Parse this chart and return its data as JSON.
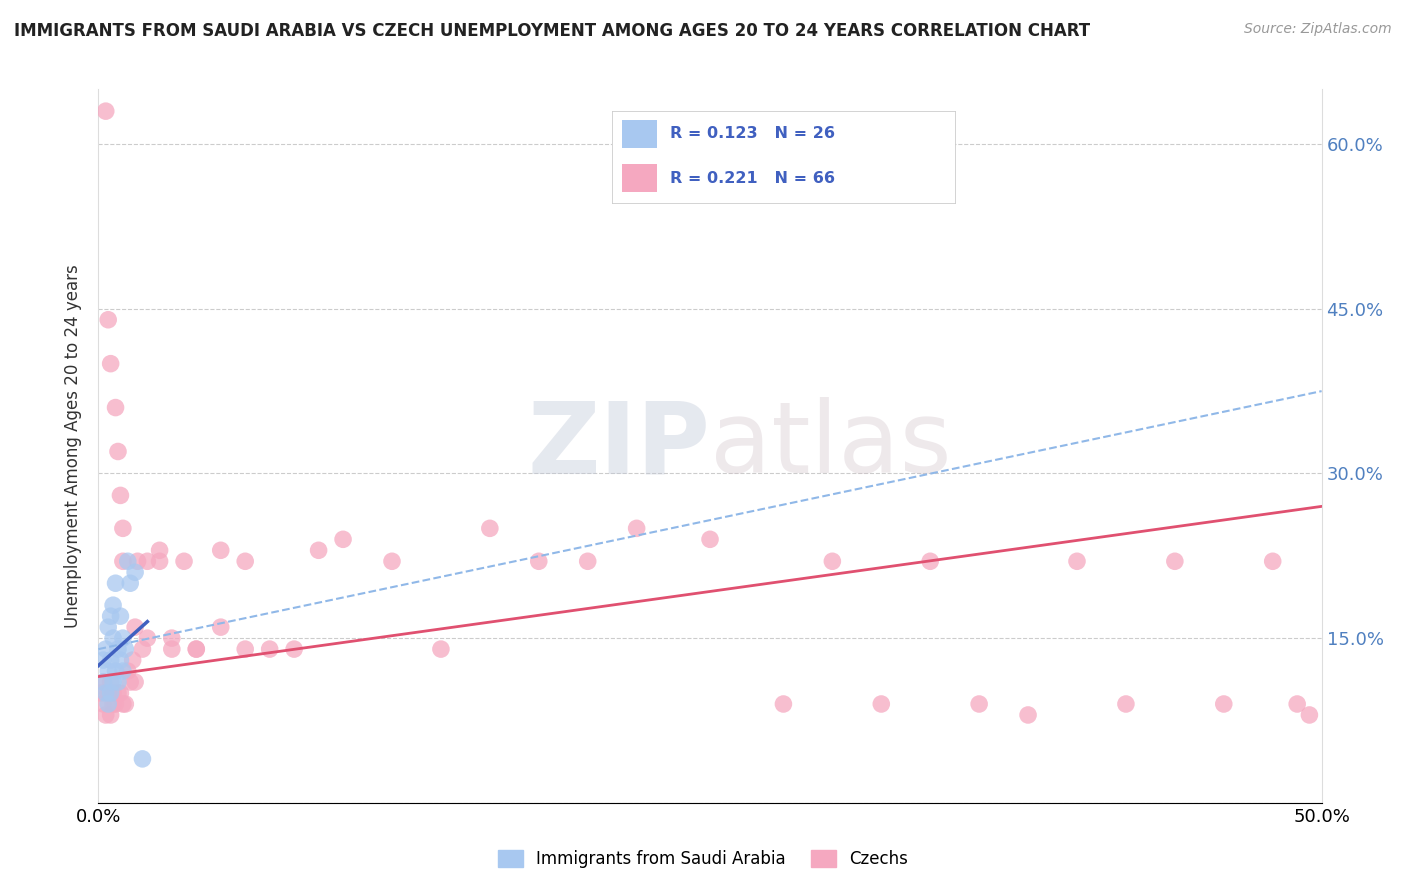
{
  "title": "IMMIGRANTS FROM SAUDI ARABIA VS CZECH UNEMPLOYMENT AMONG AGES 20 TO 24 YEARS CORRELATION CHART",
  "source": "Source: ZipAtlas.com",
  "ylabel": "Unemployment Among Ages 20 to 24 years",
  "x_min": 0.0,
  "x_max": 0.5,
  "y_min": 0.0,
  "y_max": 0.65,
  "yticks": [
    0.0,
    0.15,
    0.3,
    0.45,
    0.6
  ],
  "right_ytick_labels": [
    "",
    "15.0%",
    "30.0%",
    "45.0%",
    "60.0%"
  ],
  "xticks": [
    0.0,
    0.1,
    0.2,
    0.3,
    0.4,
    0.5
  ],
  "color_blue": "#A8C8F0",
  "color_pink": "#F5A8C0",
  "color_blue_line": "#4060C0",
  "color_pink_line": "#E05070",
  "color_dashed_line": "#90B8E8",
  "watermark": "ZIPatlas",
  "blue_dots_x": [
    0.002,
    0.002,
    0.003,
    0.003,
    0.004,
    0.004,
    0.004,
    0.005,
    0.005,
    0.005,
    0.006,
    0.006,
    0.006,
    0.007,
    0.007,
    0.008,
    0.008,
    0.009,
    0.009,
    0.01,
    0.01,
    0.011,
    0.012,
    0.013,
    0.015,
    0.018
  ],
  "blue_dots_y": [
    0.11,
    0.13,
    0.1,
    0.14,
    0.09,
    0.12,
    0.16,
    0.1,
    0.13,
    0.17,
    0.11,
    0.15,
    0.18,
    0.12,
    0.2,
    0.11,
    0.14,
    0.13,
    0.17,
    0.12,
    0.15,
    0.14,
    0.22,
    0.2,
    0.21,
    0.04
  ],
  "pink_dots_x": [
    0.001,
    0.002,
    0.002,
    0.003,
    0.003,
    0.004,
    0.004,
    0.005,
    0.005,
    0.005,
    0.006,
    0.006,
    0.007,
    0.007,
    0.008,
    0.008,
    0.009,
    0.009,
    0.01,
    0.01,
    0.011,
    0.012,
    0.013,
    0.014,
    0.015,
    0.016,
    0.018,
    0.02,
    0.025,
    0.03,
    0.035,
    0.04,
    0.05,
    0.06,
    0.07,
    0.08,
    0.09,
    0.1,
    0.12,
    0.14,
    0.16,
    0.18,
    0.2,
    0.22,
    0.25,
    0.28,
    0.3,
    0.32,
    0.34,
    0.36,
    0.38,
    0.4,
    0.42,
    0.44,
    0.46,
    0.48,
    0.49,
    0.495,
    0.01,
    0.015,
    0.02,
    0.025,
    0.03,
    0.04,
    0.05,
    0.06
  ],
  "pink_dots_y": [
    0.1,
    0.09,
    0.11,
    0.08,
    0.63,
    0.1,
    0.44,
    0.08,
    0.11,
    0.4,
    0.1,
    0.09,
    0.09,
    0.36,
    0.1,
    0.32,
    0.1,
    0.28,
    0.09,
    0.25,
    0.09,
    0.12,
    0.11,
    0.13,
    0.11,
    0.22,
    0.14,
    0.22,
    0.22,
    0.14,
    0.22,
    0.14,
    0.23,
    0.22,
    0.14,
    0.14,
    0.23,
    0.24,
    0.22,
    0.14,
    0.25,
    0.22,
    0.22,
    0.25,
    0.24,
    0.09,
    0.22,
    0.09,
    0.22,
    0.09,
    0.08,
    0.22,
    0.09,
    0.22,
    0.09,
    0.22,
    0.09,
    0.08,
    0.22,
    0.16,
    0.15,
    0.23,
    0.15,
    0.14,
    0.16,
    0.14
  ],
  "blue_line_x": [
    0.0,
    0.02
  ],
  "blue_line_y": [
    0.125,
    0.165
  ],
  "pink_line_x": [
    0.0,
    0.5
  ],
  "pink_line_y": [
    0.115,
    0.27
  ],
  "dashed_line_x": [
    0.0,
    0.5
  ],
  "dashed_line_y": [
    0.14,
    0.375
  ],
  "background_color": "#FFFFFF",
  "grid_color": "#CCCCCC"
}
